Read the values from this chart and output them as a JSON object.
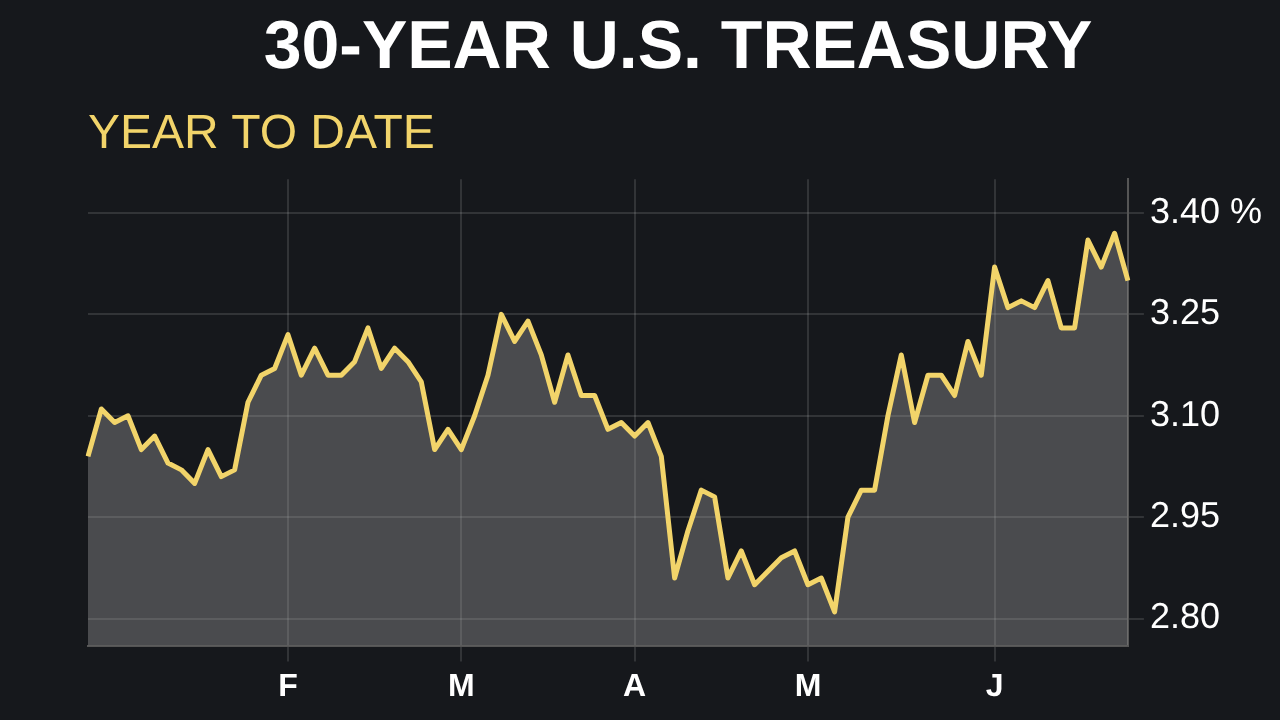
{
  "chart_data": {
    "type": "area",
    "title": "30-YEAR U.S. TREASURY",
    "subtitle": "YEAR TO DATE",
    "categories": [
      null,
      null,
      null,
      null,
      null,
      null,
      null,
      null,
      null,
      null,
      null,
      null,
      null,
      null,
      null,
      "F",
      null,
      null,
      null,
      null,
      null,
      null,
      null,
      null,
      null,
      null,
      null,
      null,
      "M",
      null,
      null,
      null,
      null,
      null,
      null,
      null,
      null,
      null,
      null,
      null,
      null,
      "A",
      null,
      null,
      null,
      null,
      null,
      null,
      null,
      null,
      null,
      null,
      null,
      null,
      "M",
      null,
      null,
      null,
      null,
      null,
      null,
      null,
      null,
      null,
      null,
      null,
      null,
      null,
      "J",
      null,
      null,
      null,
      null,
      null,
      null,
      null,
      null,
      null,
      null
    ],
    "series": [
      {
        "color": "#f2d46a",
        "values": [
          3.04,
          3.11,
          3.09,
          3.1,
          3.05,
          3.07,
          3.03,
          3.02,
          3.0,
          3.05,
          3.01,
          3.02,
          3.12,
          3.16,
          3.17,
          3.22,
          3.16,
          3.2,
          3.16,
          3.16,
          3.18,
          3.23,
          3.17,
          3.2,
          3.18,
          3.15,
          3.05,
          3.08,
          3.05,
          3.1,
          3.16,
          3.25,
          3.21,
          3.24,
          3.19,
          3.12,
          3.19,
          3.13,
          3.13,
          3.08,
          3.09,
          3.07,
          3.09,
          3.04,
          2.86,
          2.93,
          2.99,
          2.98,
          2.86,
          2.9,
          2.85,
          2.87,
          2.89,
          2.9,
          2.85,
          2.86,
          2.81,
          2.95,
          2.99,
          2.99,
          3.1,
          3.19,
          3.09,
          3.16,
          3.16,
          3.13,
          3.21,
          3.16,
          3.32,
          3.26,
          3.27,
          3.26,
          3.3,
          3.23,
          3.23,
          3.36,
          3.32,
          3.37,
          3.3
        ]
      }
    ],
    "ylim": [
      2.76,
      3.45
    ],
    "yticks": [
      {
        "value": 2.8,
        "label": "2.80"
      },
      {
        "value": 2.95,
        "label": "2.95"
      },
      {
        "value": 3.1,
        "label": "3.10"
      },
      {
        "value": 3.25,
        "label": "3.25"
      },
      {
        "value": 3.4,
        "label": "3.40 %"
      }
    ],
    "grid": true,
    "legend": false,
    "marker": "none",
    "line_style": "solid"
  }
}
